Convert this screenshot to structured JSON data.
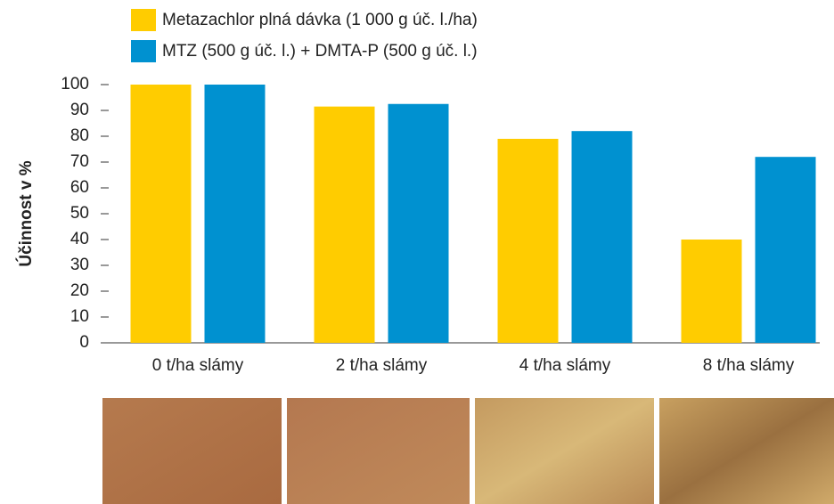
{
  "chart_data": {
    "type": "bar",
    "y_label": "Účinnost v %",
    "categories": [
      "0 t/ha slámy",
      "2 t/ha slámy",
      "4 t/ha slámy",
      "8 t/ha slámy"
    ],
    "series": [
      {
        "name": "Metazachlor plná dávka (1 000 g úč. l./ha)",
        "color": "#ffcc00",
        "values": [
          100,
          91.5,
          79,
          40
        ]
      },
      {
        "name": "MTZ (500 g úč. l.) + DMTA-P (500 g úč. l.)",
        "color": "#0091d0",
        "values": [
          100,
          92.5,
          82,
          72
        ]
      }
    ],
    "ylim": [
      0,
      100
    ],
    "yticks": [
      0,
      10,
      20,
      30,
      40,
      50,
      60,
      70,
      80,
      90,
      100
    ]
  }
}
